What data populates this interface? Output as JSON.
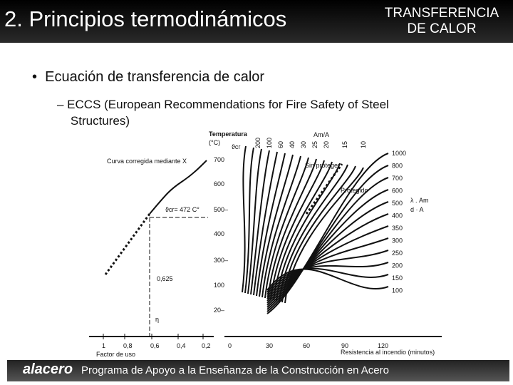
{
  "header": {
    "title": "2. Principios termodinámicos",
    "section_line1": "TRANSFERENCIA",
    "section_line2": "DE CALOR"
  },
  "bullets": [
    {
      "text": "Ecuación de transferencia de calor"
    },
    {
      "text": "– ECCS (European Recommendations for Fire Safety of Steel",
      "continuation": "Structures)"
    }
  ],
  "figure": {
    "temperature_title": "Temperatura",
    "temperature_unit": "(°C)",
    "theta_cr": "ϑcr",
    "curve_label": "Curva corregida mediante X",
    "theta_value": "ϑcr= 472 C°",
    "factor_value": "0,625",
    "eta": "η",
    "temp_ticks": [
      "700",
      "600",
      "500–",
      "400",
      "300–",
      "100",
      "20–"
    ],
    "am_label": "Am/A",
    "am_ticks": [
      "200",
      "100",
      "60",
      "40",
      "30",
      "25",
      "20",
      "15",
      "10"
    ],
    "unprotected": "Sin proteger",
    "protected": "Protegido",
    "right_ticks": [
      "1000",
      "800",
      "700",
      "600",
      "500",
      "400",
      "350",
      "300",
      "250",
      "200",
      "150",
      "100"
    ],
    "lambda_label": "λ . Am",
    "lambda_label2": "d · A",
    "factor_ticks": [
      "1",
      "0,8",
      "0,6",
      "0,4",
      "0,2"
    ],
    "factor_axis": "Factor de uso",
    "time_ticks": [
      "0",
      "30",
      "60",
      "90",
      "120"
    ],
    "time_axis": "Resistencia al incendio (minutos)"
  },
  "footer": {
    "logo": "alacero",
    "text": "Programa de Apoyo a la Enseñanza de la Construcción en Acero"
  }
}
